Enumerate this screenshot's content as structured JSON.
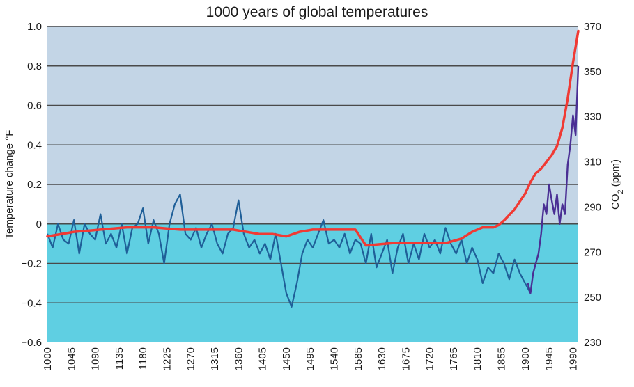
{
  "chart_data": {
    "type": "line",
    "title": "1000 years of global temperatures",
    "ylabel": "Temperature change °F",
    "y2label_main": "CO",
    "y2label_sub": "2",
    "y2label_unit": " (ppm)",
    "xlim": [
      1000,
      2000
    ],
    "ylim": [
      -0.6,
      1.0
    ],
    "y2lim": [
      230,
      370
    ],
    "x_ticks": [
      1000,
      1045,
      1090,
      1135,
      1180,
      1225,
      1270,
      1315,
      1360,
      1405,
      1450,
      1495,
      1540,
      1585,
      1630,
      1675,
      1720,
      1765,
      1810,
      1855,
      1900,
      1945,
      1990
    ],
    "x_tick_labels": [
      "1000",
      "1045",
      "1090",
      "1135",
      "1180",
      "1225",
      "1270",
      "1315",
      "1360",
      "1405",
      "1450",
      "1495",
      "1540",
      "1585",
      "1630",
      "1675",
      "1720",
      "1765",
      "1810",
      "1855",
      "1900",
      "1945",
      "1990"
    ],
    "y_ticks": [
      -0.6,
      -0.4,
      -0.2,
      0,
      0.2,
      0.4,
      0.6,
      0.8,
      1.0
    ],
    "y_tick_labels": [
      "−0.6",
      "−0.4",
      "−0.2",
      "0",
      "0.2",
      "0.4",
      "0.6",
      "0.8",
      "1.0"
    ],
    "y2_ticks": [
      230,
      250,
      270,
      290,
      310,
      330,
      350,
      370
    ],
    "y2_tick_labels": [
      "230",
      "250",
      "270",
      "290",
      "310",
      "330",
      "350",
      "370"
    ],
    "grid": true,
    "colors": {
      "plot_bg": "#c3d5e6",
      "below_zero_fill": "#5fcfe2",
      "temp_proxy": "#1f5f98",
      "temp_instrumental": "#4a2f94",
      "co2": "#f03a34",
      "grid": "#4a4a4a"
    },
    "series": [
      {
        "axis": "left",
        "style": "proxy-temperature",
        "x": [
          1000,
          1010,
          1020,
          1030,
          1040,
          1050,
          1060,
          1070,
          1080,
          1090,
          1100,
          1110,
          1120,
          1130,
          1140,
          1150,
          1160,
          1170,
          1180,
          1190,
          1200,
          1210,
          1220,
          1230,
          1240,
          1250,
          1260,
          1270,
          1280,
          1290,
          1300,
          1310,
          1320,
          1330,
          1340,
          1350,
          1360,
          1370,
          1380,
          1390,
          1400,
          1410,
          1420,
          1430,
          1440,
          1450,
          1460,
          1470,
          1480,
          1490,
          1500,
          1510,
          1520,
          1530,
          1540,
          1550,
          1560,
          1570,
          1580,
          1590,
          1600,
          1610,
          1620,
          1630,
          1640,
          1650,
          1660,
          1670,
          1680,
          1690,
          1700,
          1710,
          1720,
          1730,
          1740,
          1750,
          1760,
          1770,
          1780,
          1790,
          1800,
          1810,
          1820,
          1830,
          1840,
          1850,
          1860,
          1870,
          1880,
          1890,
          1900,
          1910
        ],
        "y": [
          -0.05,
          -0.12,
          0.0,
          -0.08,
          -0.1,
          0.02,
          -0.15,
          0.0,
          -0.05,
          -0.08,
          0.05,
          -0.1,
          -0.05,
          -0.12,
          0.0,
          -0.15,
          -0.02,
          0.0,
          0.08,
          -0.1,
          0.02,
          -0.05,
          -0.2,
          0.0,
          0.1,
          0.15,
          -0.05,
          -0.08,
          -0.02,
          -0.12,
          -0.05,
          0.0,
          -0.1,
          -0.15,
          -0.05,
          -0.02,
          0.12,
          -0.05,
          -0.12,
          -0.08,
          -0.15,
          -0.1,
          -0.18,
          -0.05,
          -0.2,
          -0.35,
          -0.42,
          -0.3,
          -0.15,
          -0.08,
          -0.12,
          -0.05,
          0.02,
          -0.1,
          -0.08,
          -0.12,
          -0.05,
          -0.15,
          -0.08,
          -0.1,
          -0.2,
          -0.05,
          -0.22,
          -0.15,
          -0.08,
          -0.25,
          -0.12,
          -0.05,
          -0.2,
          -0.1,
          -0.18,
          -0.05,
          -0.12,
          -0.08,
          -0.15,
          -0.02,
          -0.1,
          -0.15,
          -0.08,
          -0.2,
          -0.12,
          -0.18,
          -0.3,
          -0.22,
          -0.25,
          -0.15,
          -0.2,
          -0.28,
          -0.18,
          -0.25,
          -0.3,
          -0.35
        ]
      },
      {
        "axis": "left",
        "style": "instrumental-temperature",
        "x": [
          1905,
          1910,
          1915,
          1920,
          1925,
          1930,
          1935,
          1940,
          1945,
          1950,
          1955,
          1960,
          1965,
          1970,
          1975,
          1980,
          1985,
          1990,
          1995,
          2000
        ],
        "y": [
          -0.3,
          -0.35,
          -0.25,
          -0.2,
          -0.15,
          -0.05,
          0.1,
          0.05,
          0.2,
          0.12,
          0.05,
          0.15,
          0.0,
          0.1,
          0.05,
          0.3,
          0.4,
          0.55,
          0.45,
          0.8
        ]
      },
      {
        "axis": "right",
        "style": "co2",
        "x": [
          1000,
          1050,
          1100,
          1150,
          1200,
          1250,
          1300,
          1350,
          1400,
          1425,
          1450,
          1475,
          1500,
          1550,
          1580,
          1600,
          1650,
          1700,
          1750,
          1780,
          1800,
          1820,
          1840,
          1850,
          1860,
          1880,
          1900,
          1910,
          1920,
          1930,
          1940,
          1950,
          1960,
          1970,
          1980,
          1990,
          2000
        ],
        "y": [
          277,
          279,
          280,
          281,
          281,
          280,
          280,
          280,
          278,
          278,
          277,
          279,
          280,
          280,
          280,
          273,
          274,
          274,
          274,
          276,
          279,
          281,
          281,
          282,
          284,
          289,
          296,
          301,
          305,
          307,
          310,
          313,
          317,
          325,
          338,
          354,
          368
        ]
      }
    ]
  }
}
